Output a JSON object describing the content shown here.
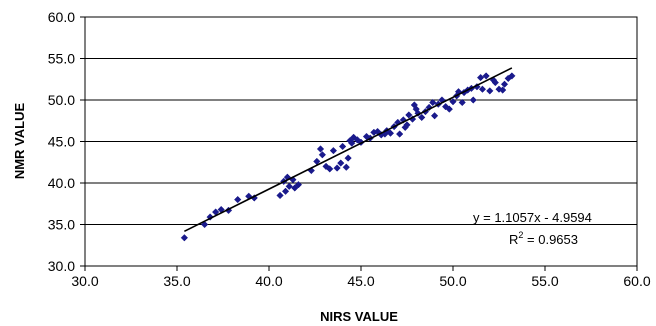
{
  "chart_data": {
    "type": "scatter",
    "xlabel": "NIRS VALUE",
    "ylabel": "NMR VALUE",
    "xlim": [
      30,
      60
    ],
    "ylim": [
      30,
      60
    ],
    "x_ticks": [
      "30.0",
      "35.0",
      "40.0",
      "45.0",
      "50.0",
      "55.0",
      "60.0"
    ],
    "y_ticks": [
      "30.0",
      "35.0",
      "40.0",
      "45.0",
      "50.0",
      "55.0",
      "60.0"
    ],
    "grid": "horizontal",
    "marker_color": "#1a1a8c",
    "trendline": {
      "slope": 1.1057,
      "intercept": -4.9594,
      "x_range": [
        35.4,
        53.2
      ],
      "equation": "y = 1.1057x - 4.9594",
      "r2_label": "R",
      "r2_exponent": "2",
      "r2_value": " = 0.9653"
    },
    "points": [
      [
        35.4,
        33.4
      ],
      [
        36.5,
        35.0
      ],
      [
        36.8,
        35.9
      ],
      [
        37.1,
        36.5
      ],
      [
        37.4,
        36.8
      ],
      [
        37.8,
        36.7
      ],
      [
        38.3,
        38.0
      ],
      [
        38.9,
        38.4
      ],
      [
        39.2,
        38.2
      ],
      [
        40.6,
        38.5
      ],
      [
        40.8,
        40.2
      ],
      [
        40.9,
        39.0
      ],
      [
        41.0,
        40.7
      ],
      [
        41.1,
        39.6
      ],
      [
        41.3,
        40.4
      ],
      [
        41.4,
        39.4
      ],
      [
        41.6,
        39.8
      ],
      [
        42.3,
        41.5
      ],
      [
        42.6,
        42.6
      ],
      [
        42.8,
        44.1
      ],
      [
        42.9,
        43.4
      ],
      [
        43.1,
        42.0
      ],
      [
        43.3,
        41.7
      ],
      [
        43.5,
        43.9
      ],
      [
        43.7,
        41.8
      ],
      [
        43.9,
        42.4
      ],
      [
        44.0,
        44.4
      ],
      [
        44.2,
        41.9
      ],
      [
        44.3,
        43.0
      ],
      [
        44.4,
        45.1
      ],
      [
        44.5,
        44.8
      ],
      [
        44.6,
        45.5
      ],
      [
        44.8,
        45.2
      ],
      [
        45.0,
        44.9
      ],
      [
        45.3,
        45.6
      ],
      [
        45.5,
        45.4
      ],
      [
        45.7,
        46.1
      ],
      [
        45.9,
        46.2
      ],
      [
        46.1,
        45.8
      ],
      [
        46.3,
        45.9
      ],
      [
        46.4,
        46.3
      ],
      [
        46.6,
        46.0
      ],
      [
        46.8,
        46.8
      ],
      [
        47.0,
        47.3
      ],
      [
        47.1,
        45.9
      ],
      [
        47.3,
        47.6
      ],
      [
        47.4,
        46.7
      ],
      [
        47.5,
        47.0
      ],
      [
        47.6,
        48.2
      ],
      [
        47.8,
        47.7
      ],
      [
        47.9,
        49.4
      ],
      [
        48.0,
        48.9
      ],
      [
        48.1,
        48.4
      ],
      [
        48.3,
        47.9
      ],
      [
        48.5,
        48.6
      ],
      [
        48.7,
        49.1
      ],
      [
        48.9,
        49.7
      ],
      [
        49.0,
        48.1
      ],
      [
        49.2,
        49.5
      ],
      [
        49.4,
        50.0
      ],
      [
        49.6,
        49.2
      ],
      [
        49.8,
        48.9
      ],
      [
        50.0,
        49.8
      ],
      [
        50.2,
        50.5
      ],
      [
        50.3,
        51.0
      ],
      [
        50.5,
        49.7
      ],
      [
        50.6,
        50.9
      ],
      [
        50.8,
        51.2
      ],
      [
        51.0,
        51.4
      ],
      [
        51.1,
        50.0
      ],
      [
        51.3,
        51.6
      ],
      [
        51.5,
        52.7
      ],
      [
        51.6,
        51.3
      ],
      [
        51.8,
        52.9
      ],
      [
        52.0,
        51.1
      ],
      [
        52.2,
        52.4
      ],
      [
        52.3,
        52.1
      ],
      [
        52.5,
        51.3
      ],
      [
        52.7,
        51.2
      ],
      [
        52.8,
        51.9
      ],
      [
        53.0,
        52.6
      ],
      [
        53.2,
        52.9
      ]
    ]
  }
}
